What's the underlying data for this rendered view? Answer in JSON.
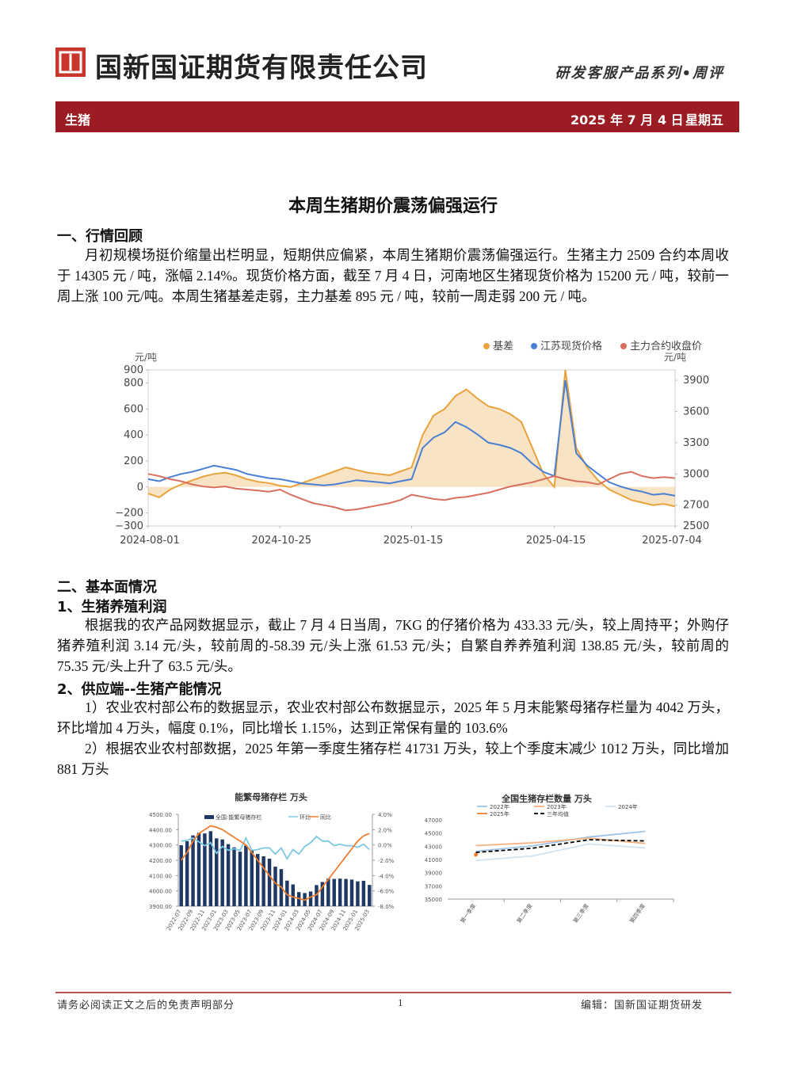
{
  "header": {
    "company": "国新国证期货有限责任公司",
    "series": "研发客服产品系列•周评"
  },
  "banner": {
    "product": "生猪",
    "date": "2025 年 7 月 4 日",
    "weekday": "星期五"
  },
  "title": "本周生猪期价震荡偏强运行",
  "section1": {
    "heading": "一、行情回顾",
    "paragraphs": [
      "月初规模场挺价缩量出栏明显，短期供应偏紧，本周生猪期价震荡偏强运行。生猪主力 2509 合约本周收于 14305 元 / 吨，涨幅 2.14%。现货价格方面，截至 7 月 4 日，河南地区生猪现货价格为 15200 元 / 吨，较前一周上涨 100 元/吨。本周生猪基差走弱，主力基差 895 元 / 吨，较前一周走弱 200 元 / 吨。"
    ]
  },
  "section2": {
    "heading": "二、基本面情况",
    "subsections": [
      {
        "heading": "1、生猪养殖利润",
        "paragraphs": [
          "根据我的农产品网数据显示，截止 7 月 4 日当周，7KG 的仔猪价格为 433.33 元/头，较上周持平；外购仔猪养殖利润 3.14 元/头，较前周的-58.39 元/头上涨 61.53 元/头；自繁自养养殖利润 138.85 元/头，较前周的 75.35 元/头上升了 63.5 元/头。"
        ]
      },
      {
        "heading": "2、供应端--生猪产能情况",
        "paragraphs": [
          "1）农业农村部公布的数据显示，农业农村部公布数据显示，2025 年 5 月末能繁母猪存栏量为 4042 万头，环比增加 4 万头，幅度 0.1%，同比增长 1.15%，达到正常保有量的 103.6%",
          "2）根据农业农村部数据，2025 年第一季度生猪存栏 41731 万头，较上个季度末减少 1012 万头，同比增加 881 万头"
        ]
      }
    ]
  },
  "chart_data": [
    {
      "type": "line",
      "y_unit": "元/吨",
      "y2_unit": "元/吨",
      "xlim": [
        0,
        48
      ],
      "xticks": [
        {
          "value": 0,
          "label": "2024-08-01"
        },
        {
          "value": 12,
          "label": "2024-10-25"
        },
        {
          "value": 24,
          "label": "2025-01-15"
        },
        {
          "value": 37,
          "label": "2025-04-15"
        },
        {
          "value": 48,
          "label": "2025-07-04"
        }
      ],
      "ylim": [
        -300,
        900
      ],
      "yticks": [
        {
          "value": -300,
          "label": "−300"
        },
        {
          "value": -200,
          "label": "−200"
        },
        0,
        200,
        400,
        600,
        800,
        900
      ],
      "y2lim": [
        2500,
        4000
      ],
      "y2ticks": [
        2500,
        2700,
        3000,
        3300,
        3600,
        3900
      ],
      "series": [
        {
          "name": "基差",
          "color": "#e8a33d",
          "area": true,
          "values": [
            -50,
            -80,
            -20,
            20,
            50,
            80,
            100,
            110,
            90,
            60,
            40,
            30,
            10,
            0,
            30,
            60,
            90,
            120,
            150,
            130,
            110,
            100,
            90,
            120,
            150,
            400,
            550,
            600,
            700,
            750,
            680,
            620,
            600,
            560,
            500,
            300,
            100,
            0,
            900,
            300,
            150,
            50,
            -20,
            -60,
            -100,
            -120,
            -140,
            -130,
            -150
          ]
        },
        {
          "name": "江苏现货价格",
          "color": "#4a7fd4",
          "axis": "y2",
          "values": [
            2950,
            2930,
            2970,
            3000,
            3020,
            3050,
            3080,
            3060,
            3040,
            3000,
            2980,
            2960,
            2950,
            2930,
            2910,
            2900,
            2890,
            2900,
            2920,
            2940,
            2930,
            2920,
            2910,
            2930,
            2950,
            3250,
            3350,
            3400,
            3500,
            3450,
            3380,
            3300,
            3280,
            3250,
            3200,
            3100,
            3020,
            2980,
            3900,
            3200,
            3080,
            3000,
            2920,
            2880,
            2850,
            2830,
            2800,
            2810,
            2790
          ]
        },
        {
          "name": "主力合约收盘价",
          "color": "#d9705f",
          "axis": "y2",
          "values": [
            3000,
            2980,
            2950,
            2930,
            2900,
            2880,
            2870,
            2880,
            2860,
            2850,
            2840,
            2830,
            2850,
            2800,
            2760,
            2720,
            2700,
            2680,
            2650,
            2660,
            2680,
            2700,
            2720,
            2750,
            2800,
            2780,
            2760,
            2750,
            2770,
            2780,
            2800,
            2820,
            2850,
            2880,
            2900,
            2920,
            2950,
            2980,
            2950,
            2930,
            2920,
            2900,
            2950,
            3000,
            3020,
            2980,
            2960,
            2970,
            2960
          ]
        }
      ]
    },
    {
      "type": "bar-line",
      "title": "能繁母猪存栏   万头",
      "categories": [
        "2022-07",
        null,
        "2022-09",
        null,
        "2022-11",
        null,
        "2023-01",
        null,
        "2023-03",
        null,
        "2023-05",
        null,
        "2023-07",
        null,
        "2023-09",
        null,
        "2023-11",
        null,
        "2024-01",
        null,
        "2024-03",
        null,
        "2024-05",
        null,
        "2024-07",
        null,
        "2024-09",
        null,
        "2024-11",
        null,
        "2025-01",
        null,
        "2025-03"
      ],
      "ylim": [
        3900,
        4500
      ],
      "yticks": [
        {
          "value": 3900,
          "label": "3900.00"
        },
        {
          "value": 4000,
          "label": "4000.00"
        },
        {
          "value": 4100,
          "label": "4100.00"
        },
        {
          "value": 4200,
          "label": "4200.00"
        },
        {
          "value": 4300,
          "label": "4300.00"
        },
        {
          "value": 4400,
          "label": "4400.00"
        },
        {
          "value": 4500,
          "label": "4500.00"
        }
      ],
      "y2lim": [
        -8,
        4
      ],
      "y2ticks": [
        {
          "value": -8,
          "label": "-8.0%"
        },
        {
          "value": -6,
          "label": "-6.0%"
        },
        {
          "value": -4,
          "label": "-4.0%"
        },
        {
          "value": -2,
          "label": "-2.0%"
        },
        {
          "value": 0,
          "label": "0.0%"
        },
        {
          "value": 2,
          "label": "2.0%"
        },
        {
          "value": 4,
          "label": "4.0%"
        }
      ],
      "series": [
        {
          "name": "全国:能繁母猪存栏",
          "color": "#1f3864",
          "kind": "bar",
          "values": [
            4298,
            4324,
            4362,
            4379,
            4375,
            4390,
            4343,
            4336,
            4305,
            4284,
            4256,
            4296,
            4265,
            4241,
            4226,
            4210,
            4158,
            4142,
            4067,
            4042,
            3992,
            3986,
            3996,
            4038,
            4058,
            4080,
            4078,
            4080,
            4078,
            4074,
            4062,
            4066,
            4039
          ]
        },
        {
          "name": "环比",
          "color": "#7ec8e3",
          "kind": "line",
          "axis": "y2",
          "values": [
            0.5,
            0.6,
            0.9,
            0.4,
            -0.1,
            0.3,
            -1.1,
            -0.2,
            -0.7,
            -0.5,
            -0.7,
            0.9,
            -0.7,
            -0.6,
            -0.4,
            -0.4,
            -1.2,
            -0.4,
            -1.8,
            -0.6,
            -1.2,
            -0.2,
            0.3,
            1.1,
            0.5,
            0.5,
            -0.1,
            0.1,
            -0.1,
            -0.1,
            -0.3,
            0.1,
            -0.6
          ]
        },
        {
          "name": "同比",
          "color": "#ed7d31",
          "kind": "line",
          "axis": "y2",
          "values": [
            -2.0,
            -1.0,
            0.5,
            1.5,
            2.0,
            2.5,
            2.3,
            2.0,
            1.5,
            1.0,
            0.5,
            0.0,
            -1.0,
            -2.0,
            -3.0,
            -4.0,
            -5.0,
            -5.5,
            -6.5,
            -6.8,
            -7.0,
            -7.2,
            -6.8,
            -6.5,
            -5.5,
            -4.5,
            -3.5,
            -2.5,
            -1.5,
            -0.5,
            0.5,
            1.2,
            1.5
          ]
        }
      ]
    },
    {
      "type": "line",
      "title": "全国生猪存栏数量   万头",
      "categories": [
        "第一季度",
        "第二季度",
        "第三季度",
        "第四季度"
      ],
      "ylim": [
        35000,
        47000
      ],
      "yticks": [
        35000,
        37000,
        39000,
        41000,
        43000,
        45000,
        47000
      ],
      "series": [
        {
          "name": "2022年",
          "color": "#9dc3e6",
          "values": [
            42253,
            43057,
            44394,
            45256
          ]
        },
        {
          "name": "2023年",
          "color": "#f4b183",
          "values": [
            43094,
            43517,
            44229,
            43422
          ]
        },
        {
          "name": "2024年",
          "color": "#cfe2f3",
          "values": [
            40850,
            41533,
            43350,
            42743
          ]
        },
        {
          "name": "2025年",
          "color": "#ed7d31",
          "values": [
            41731,
            null,
            null,
            null
          ]
        },
        {
          "name": "三年均值",
          "color": "#000000",
          "dash": true,
          "values": [
            42066,
            42702,
            43991,
            43807
          ]
        }
      ]
    }
  ],
  "footer": {
    "disclaimer": "请务必阅读正文之后的免责声明部分",
    "page": "1",
    "editor": "编辑：国新国证期货研发"
  }
}
